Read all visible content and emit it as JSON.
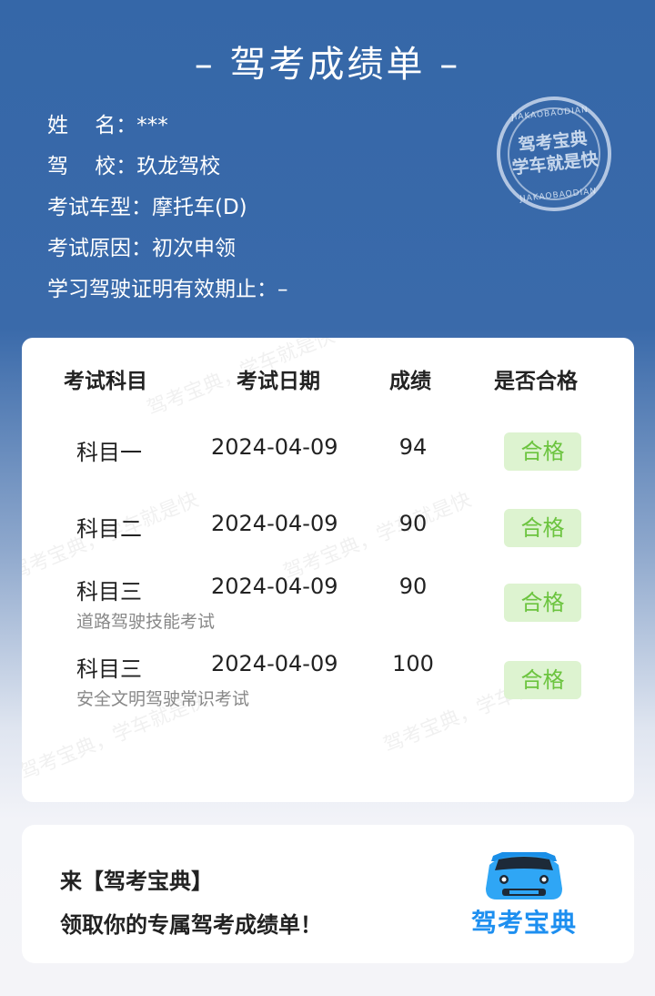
{
  "title": "– 驾考成绩单 –",
  "info": [
    {
      "label": "姓    名：",
      "value": "***"
    },
    {
      "label": "驾    校：",
      "value": "玖龙驾校"
    },
    {
      "label": "考试车型：",
      "value": "摩托车(D)"
    },
    {
      "label": "考试原因：",
      "value": "初次申领"
    },
    {
      "label": "学习驾驶证明有效期止：",
      "value": "–"
    }
  ],
  "stamp": {
    "top": "JIAKAOBAODIAN",
    "line1": "驾考宝典",
    "line2": "学车就是快",
    "bottom": "JIAKAOBAODIAN"
  },
  "watermark": "驾考宝典，学车就是快",
  "table": {
    "headers": [
      "考试科目",
      "考试日期",
      "成绩",
      "是否合格"
    ],
    "rows": [
      {
        "subject": "科目一",
        "sub": "",
        "date": "2024-04-09",
        "score": "94",
        "result": "合格"
      },
      {
        "subject": "科目二",
        "sub": "",
        "date": "2024-04-09",
        "score": "90",
        "result": "合格"
      },
      {
        "subject": "科目三",
        "sub": "道路驾驶技能考试",
        "date": "2024-04-09",
        "score": "90",
        "result": "合格"
      },
      {
        "subject": "科目三",
        "sub": "安全文明驾驶常识考试",
        "date": "2024-04-09",
        "score": "100",
        "result": "合格"
      }
    ]
  },
  "promo": {
    "line1": "来【驾考宝典】",
    "line2": "领取你的专属驾考成绩单！",
    "logo_text": "驾考宝典"
  },
  "colors": {
    "header_bg": "#3567a8",
    "pass_text": "#6cc43f",
    "pass_bg": "#ddf3d0",
    "brand": "#1d8ff0"
  }
}
